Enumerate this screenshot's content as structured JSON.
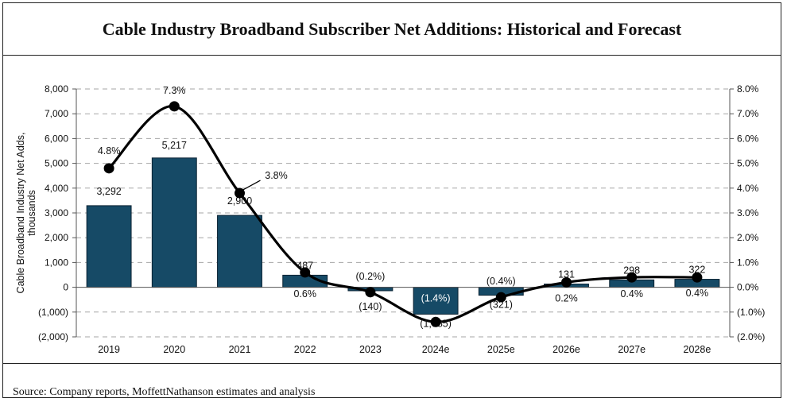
{
  "title": "Cable Industry Broadband Subscriber Net Additions: Historical and Forecast",
  "source": "Source: Company reports, MoffettNathanson estimates and analysis",
  "colors": {
    "bar": "#164a66",
    "line": "#000000",
    "grid": "#a6a6a6"
  },
  "chart_data": {
    "type": "bar",
    "title": "Cable Industry Broadband Subscriber Net Additions: Historical and Forecast",
    "ylabel": "Cable Broadband Industry Net Adds, thousands",
    "ylabel_lines": [
      "Cable Broadband Industry Net Adds,",
      "thousands"
    ],
    "categories": [
      "2019",
      "2020",
      "2021",
      "2022",
      "2023",
      "2024e",
      "2025e",
      "2026e",
      "2027e",
      "2028e"
    ],
    "ylim": [
      -2000,
      8000
    ],
    "y2lim": [
      -2.0,
      8.0
    ],
    "yticks": [
      -2000,
      -1000,
      0,
      1000,
      2000,
      3000,
      4000,
      5000,
      6000,
      7000,
      8000
    ],
    "ytick_labels": [
      "(2,000)",
      "(1,000)",
      "0",
      "1,000",
      "2,000",
      "3,000",
      "4,000",
      "5,000",
      "6,000",
      "7,000",
      "8,000"
    ],
    "y2ticks": [
      -2,
      -1,
      0,
      1,
      2,
      3,
      4,
      5,
      6,
      7,
      8
    ],
    "y2tick_labels": [
      "(2.0%)",
      "(1.0%)",
      "0.0%",
      "1.0%",
      "2.0%",
      "3.0%",
      "4.0%",
      "5.0%",
      "6.0%",
      "7.0%",
      "8.0%"
    ],
    "grid": true,
    "series": [
      {
        "name": "Net Adds",
        "type": "bar",
        "values": [
          3292,
          5217,
          2900,
          487,
          -140,
          -1085,
          -321,
          131,
          298,
          322
        ],
        "labels": [
          "3,292",
          "5,217",
          "2,900",
          "487",
          "(140)",
          "(1,085)",
          "(321)",
          "131",
          "298",
          "322"
        ]
      },
      {
        "name": "Growth",
        "type": "line",
        "axis": "right",
        "values": [
          4.8,
          7.3,
          3.8,
          0.6,
          -0.2,
          -1.4,
          -0.4,
          0.2,
          0.4,
          0.4
        ],
        "labels": [
          "4.8%",
          "7.3%",
          "3.8%",
          "0.6%",
          "(0.2%)",
          "(1.4%)",
          "(0.4%)",
          "0.2%",
          "0.4%",
          "0.4%"
        ]
      }
    ]
  }
}
